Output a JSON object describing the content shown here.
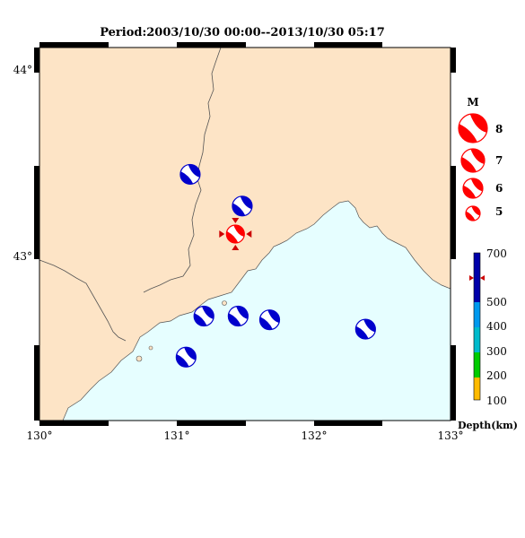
{
  "title": "Period:2003/10/30 00:00--2013/10/30 05:17",
  "axes": {
    "lon_labels": [
      "130°",
      "131°",
      "132°",
      "133°"
    ],
    "lat_labels": [
      "44°",
      "43°"
    ],
    "lon_range": [
      130,
      133
    ],
    "lat_range": [
      42.1,
      44.1
    ]
  },
  "colors": {
    "land": "#fde4c6",
    "sea": "#e6feff",
    "quake_red": "#ff0000",
    "quake_blue": "#0000cc",
    "coast": "#555555"
  },
  "magnitude_legend": {
    "title": "M",
    "items": [
      {
        "label": "8",
        "magnitude": 8
      },
      {
        "label": "7",
        "magnitude": 7
      },
      {
        "label": "6",
        "magnitude": 6
      },
      {
        "label": "5",
        "magnitude": 5
      }
    ]
  },
  "depth_legend": {
    "title": "Depth(km)",
    "ticks": [
      "700",
      "500",
      "400",
      "300",
      "200",
      "100"
    ],
    "colors": [
      "#0000aa",
      "#0099ee",
      "#00bbcc",
      "#00cc00",
      "#ffbb00"
    ]
  },
  "events": [
    {
      "lon": 131.43,
      "lat": 43.1,
      "depth": "shallow",
      "color": "red",
      "highlight": true
    },
    {
      "lon": 131.1,
      "lat": 43.42,
      "depth": "deep",
      "color": "blue"
    },
    {
      "lon": 131.48,
      "lat": 43.25,
      "depth": "deep",
      "color": "blue"
    },
    {
      "lon": 131.2,
      "lat": 42.66,
      "depth": "deep",
      "color": "blue"
    },
    {
      "lon": 131.45,
      "lat": 42.66,
      "depth": "deep",
      "color": "blue"
    },
    {
      "lon": 131.68,
      "lat": 42.64,
      "depth": "deep",
      "color": "blue"
    },
    {
      "lon": 131.07,
      "lat": 42.44,
      "depth": "deep",
      "color": "blue"
    },
    {
      "lon": 132.38,
      "lat": 42.59,
      "depth": "deep",
      "color": "blue"
    }
  ]
}
